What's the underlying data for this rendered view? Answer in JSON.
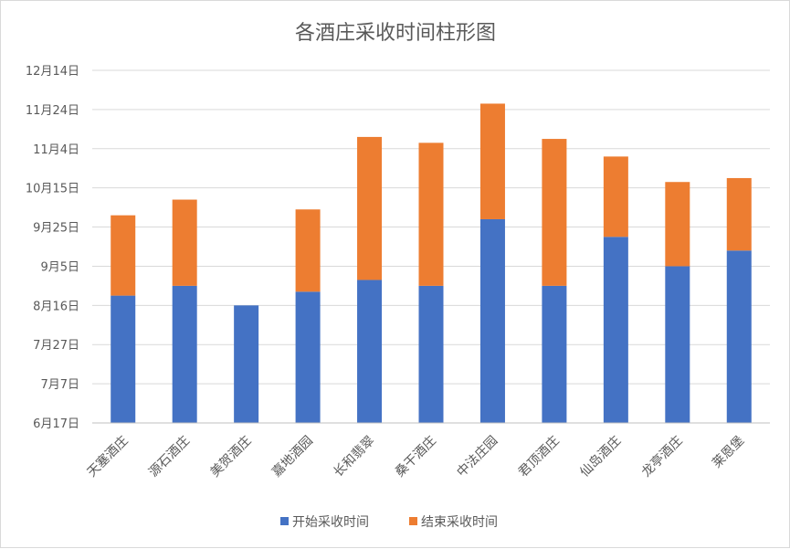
{
  "chart_data": {
    "type": "bar",
    "stacked": true,
    "title": "各酒庄采收时间柱形图",
    "categories": [
      "天塞酒庄",
      "源石酒庄",
      "美贺酒庄",
      "嘉地酒园",
      "长和翡翠",
      "桑干酒庄",
      "中法庄园",
      "君顶酒庄",
      "仙岛酒庄",
      "龙亭酒庄",
      "莱恩堡"
    ],
    "y_axis": {
      "type": "date",
      "ticks": [
        "2019-06-17",
        "2019-07-07",
        "2019-07-27",
        "2019-08-16",
        "2019-09-05",
        "2019-09-25",
        "2019-10-15",
        "2019-11-04",
        "2019-11-24",
        "2019-12-14"
      ],
      "tick_labels": [
        "6月17日",
        "7月7日",
        "7月27日",
        "8月16日",
        "9月5日",
        "9月25日",
        "10月15日",
        "11月4日",
        "11月24日",
        "12月14日"
      ],
      "range": [
        "2019-06-17",
        "2019-12-14"
      ]
    },
    "series": [
      {
        "name": "开始采收时间",
        "color": "#4472c4",
        "values": [
          "2019-08-21",
          "2019-08-26",
          "2019-08-16",
          "2019-08-23",
          "2019-08-29",
          "2019-08-26",
          "2019-09-29",
          "2019-08-26",
          "2019-09-20",
          "2019-09-05",
          "2019-09-13"
        ]
      },
      {
        "name": "结束采收时间",
        "color": "#ed7d31",
        "values": [
          "2019-10-01",
          "2019-10-09",
          null,
          "2019-10-04",
          "2019-11-10",
          "2019-11-07",
          "2019-11-27",
          "2019-11-09",
          "2019-10-31",
          "2019-10-18",
          "2019-10-20"
        ]
      }
    ],
    "grid": true,
    "legend_position": "bottom"
  }
}
